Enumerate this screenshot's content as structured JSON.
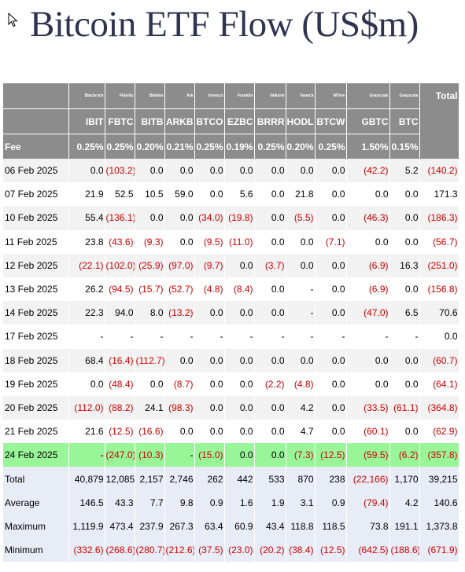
{
  "title": "Bitcoin ETF Flow (US$m)",
  "colors": {
    "header_bg": "#8c8c8c",
    "negative": "#d00000",
    "highlight_row": "#98f598",
    "summary_bg": "#e8ecf6",
    "title": "#2e3450"
  },
  "issuers": [
    "Blackrock",
    "Fidelity",
    "Bitwise",
    "Ark",
    "Invesco",
    "Franklin",
    "Valkyrie",
    "Vaneck",
    "WTree",
    "Grayscale",
    "Grayscale"
  ],
  "tickers": [
    "IBIT",
    "FBTC",
    "BITB",
    "ARKB",
    "BTCO",
    "EZBC",
    "BRRR",
    "HODL",
    "BTCW",
    "GBTC",
    "BTC"
  ],
  "total_label": "Total",
  "fee_label": "Fee",
  "fees": [
    "0.25%",
    "0.25%",
    "0.20%",
    "0.21%",
    "0.25%",
    "0.19%",
    "0.25%",
    "0.20%",
    "0.25%",
    "1.50%",
    "0.15%"
  ],
  "rows": [
    {
      "date": "06 Feb 2025",
      "values": [
        "0.0",
        "(103.2)",
        "0.0",
        "0.0",
        "0.0",
        "0.0",
        "0.0",
        "0.0",
        "0.0",
        "(42.2)",
        "5.2",
        "(140.2)"
      ]
    },
    {
      "date": "07 Feb 2025",
      "values": [
        "21.9",
        "52.5",
        "10.5",
        "59.0",
        "0.0",
        "5.6",
        "0.0",
        "21.8",
        "0.0",
        "0.0",
        "0.0",
        "171.3"
      ]
    },
    {
      "date": "10 Feb 2025",
      "values": [
        "55.4",
        "(136.1)",
        "0.0",
        "0.0",
        "(34.0)",
        "(19.8)",
        "0.0",
        "(5.5)",
        "0.0",
        "(46.3)",
        "0.0",
        "(186.3)"
      ]
    },
    {
      "date": "11 Feb 2025",
      "values": [
        "23.8",
        "(43.6)",
        "(9.3)",
        "0.0",
        "(9.5)",
        "(11.0)",
        "0.0",
        "0.0",
        "(7.1)",
        "0.0",
        "0.0",
        "(56.7)"
      ]
    },
    {
      "date": "12 Feb 2025",
      "values": [
        "(22.1)",
        "(102.0)",
        "(25.9)",
        "(97.0)",
        "(9.7)",
        "0.0",
        "(3.7)",
        "0.0",
        "0.0",
        "(6.9)",
        "16.3",
        "(251.0)"
      ]
    },
    {
      "date": "13 Feb 2025",
      "values": [
        "26.2",
        "(94.5)",
        "(15.7)",
        "(52.7)",
        "(4.8)",
        "(8.4)",
        "0.0",
        "-",
        "0.0",
        "(6.9)",
        "0.0",
        "(156.8)"
      ]
    },
    {
      "date": "14 Feb 2025",
      "values": [
        "22.3",
        "94.0",
        "8.0",
        "(13.2)",
        "0.0",
        "0.0",
        "0.0",
        "-",
        "0.0",
        "(47.0)",
        "6.5",
        "70.6"
      ]
    },
    {
      "date": "17 Feb 2025",
      "values": [
        "-",
        "-",
        "-",
        "-",
        "-",
        "-",
        "-",
        "-",
        "-",
        "-",
        "-",
        "0.0"
      ]
    },
    {
      "date": "18 Feb 2025",
      "values": [
        "68.4",
        "(16.4)",
        "(112.7)",
        "0.0",
        "0.0",
        "0.0",
        "0.0",
        "0.0",
        "0.0",
        "0.0",
        "0.0",
        "(60.7)"
      ]
    },
    {
      "date": "19 Feb 2025",
      "values": [
        "0.0",
        "(48.4)",
        "0.0",
        "(8.7)",
        "0.0",
        "0.0",
        "(2.2)",
        "(4.8)",
        "0.0",
        "0.0",
        "0.0",
        "(64.1)"
      ]
    },
    {
      "date": "20 Feb 2025",
      "values": [
        "(112.0)",
        "(88.2)",
        "24.1",
        "(98.3)",
        "0.0",
        "0.0",
        "0.0",
        "4.2",
        "0.0",
        "(33.5)",
        "(61.1)",
        "(364.8)"
      ]
    },
    {
      "date": "21 Feb 2025",
      "values": [
        "21.6",
        "(12.5)",
        "(16.6)",
        "0.0",
        "0.0",
        "0.0",
        "0.0",
        "4.7",
        "0.0",
        "(60.1)",
        "0.0",
        "(62.9)"
      ]
    },
    {
      "date": "24 Feb 2025",
      "highlight": true,
      "values": [
        "-",
        "(247.0)",
        "(10.3)",
        "-",
        "(15.0)",
        "0.0",
        "0.0",
        "(7.3)",
        "(12.5)",
        "(59.5)",
        "(6.2)",
        "(357.8)"
      ]
    }
  ],
  "summary": [
    {
      "label": "Total",
      "values": [
        "40,879",
        "12,085",
        "2,157",
        "2,746",
        "262",
        "442",
        "533",
        "870",
        "238",
        "(22,166)",
        "1,170",
        "39,215"
      ]
    },
    {
      "label": "Average",
      "values": [
        "146.5",
        "43.3",
        "7.7",
        "9.8",
        "0.9",
        "1.6",
        "1.9",
        "3.1",
        "0.9",
        "(79.4)",
        "4.2",
        "140.6"
      ]
    },
    {
      "label": "Maximum",
      "values": [
        "1,119.9",
        "473.4",
        "237.9",
        "267.3",
        "63.4",
        "60.9",
        "43.4",
        "118.8",
        "118.5",
        "73.8",
        "191.1",
        "1,373.8"
      ]
    },
    {
      "label": "Minimum",
      "values": [
        "(332.6)",
        "(268.6)",
        "(280.7)",
        "(212.6)",
        "(37.5)",
        "(23.0)",
        "(20.2)",
        "(38.4)",
        "(12.5)",
        "(642.5)",
        "(188.6)",
        "(671.9)"
      ]
    }
  ]
}
